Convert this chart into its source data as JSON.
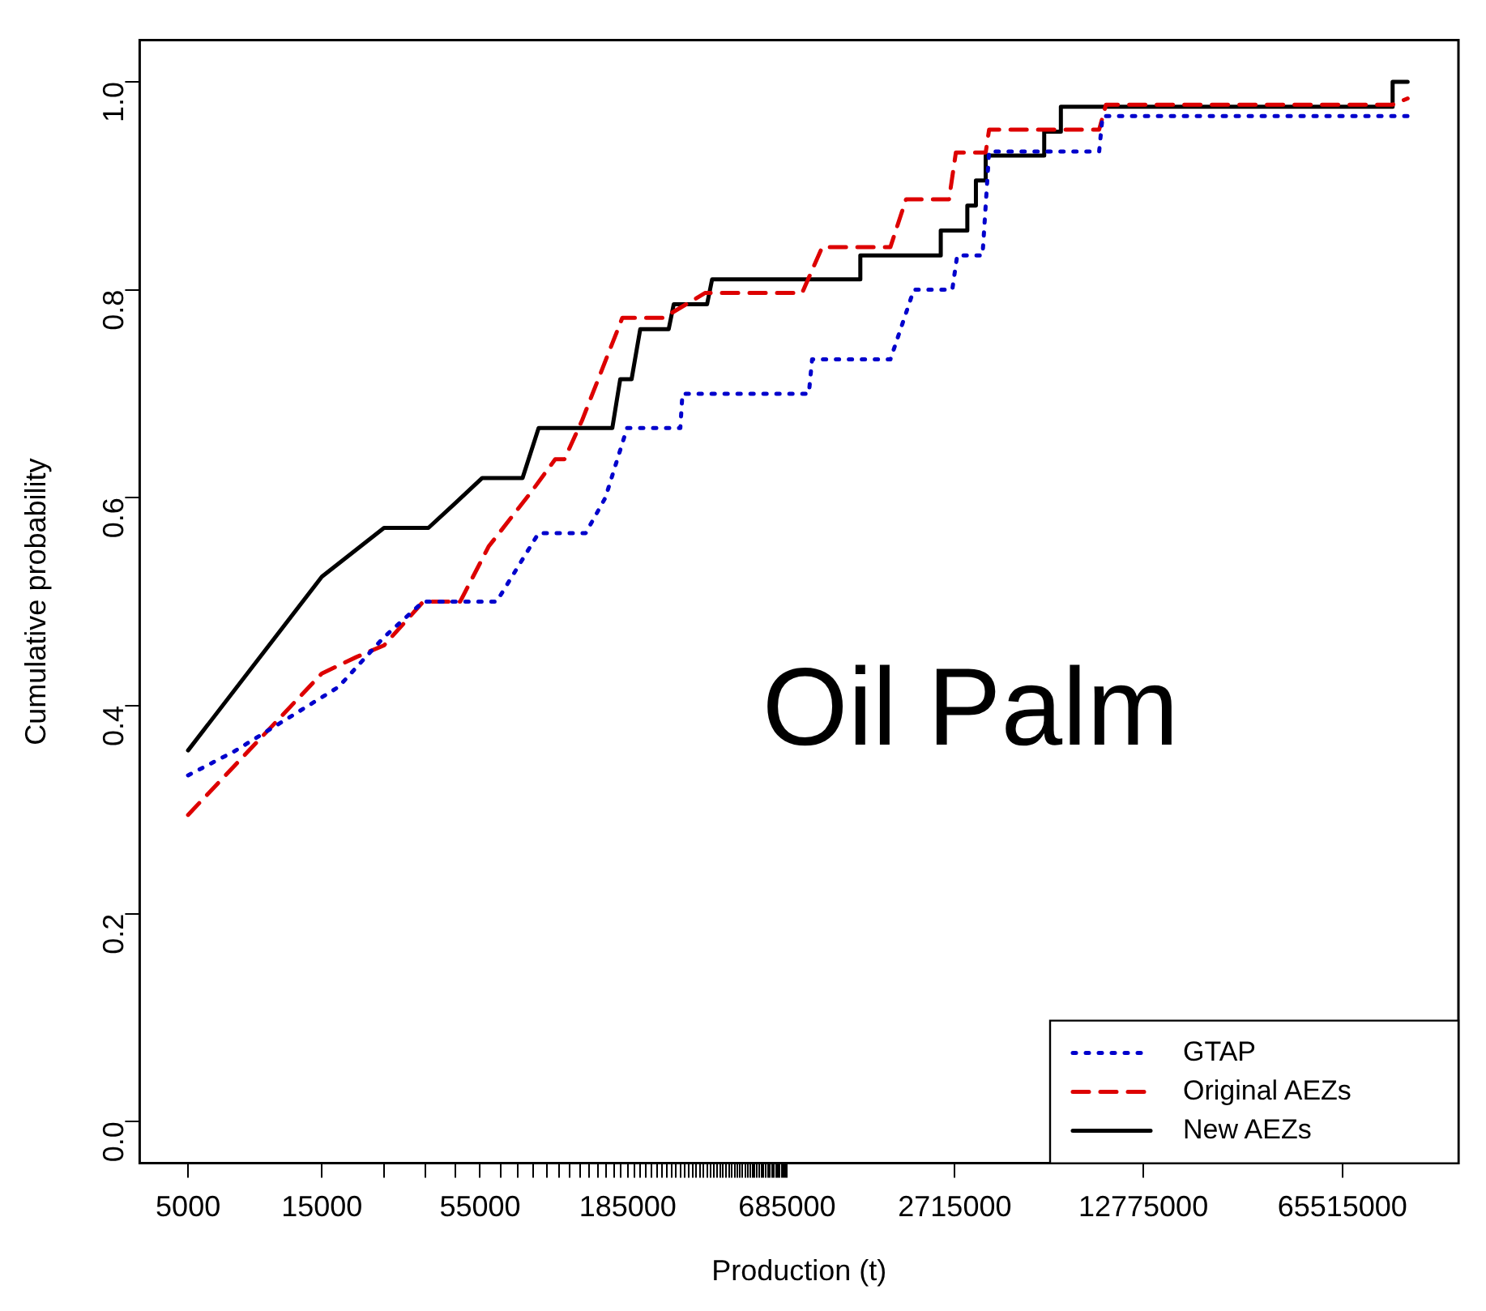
{
  "chart_data": {
    "type": "line",
    "xlabel": "Production (t)",
    "ylabel": "Cumulative probability",
    "annotations": [
      "Oil Palm"
    ],
    "log": "x",
    "grid": false,
    "legend": "bottom right",
    "marker": "none",
    "xlim": [
      3360,
      170000000
    ],
    "ylim": [
      -0.04,
      1.04
    ],
    "xticks": [
      5000,
      15000,
      {
        "value": 25000,
        "label": null
      },
      {
        "value": 35000,
        "label": null
      },
      {
        "value": 45000,
        "label": null
      },
      55000,
      {
        "value": 65000,
        "label": null
      },
      {
        "value": 75000,
        "label": null
      },
      {
        "value": 85000,
        "label": null
      },
      {
        "value": 95000,
        "label": null
      },
      {
        "value": 105000,
        "label": null
      },
      {
        "value": 115000,
        "label": null
      },
      {
        "value": 125000,
        "label": null
      },
      {
        "value": 135000,
        "label": null
      },
      {
        "value": 145000,
        "label": null
      },
      {
        "value": 155000,
        "label": null
      },
      {
        "value": 165000,
        "label": null
      },
      {
        "value": 175000,
        "label": null
      },
      185000,
      {
        "value": 195000,
        "label": null
      },
      {
        "value": 205000,
        "label": null
      },
      {
        "value": 215000,
        "label": null
      },
      {
        "value": 225000,
        "label": null
      },
      {
        "value": 235000,
        "label": null
      },
      {
        "value": 245000,
        "label": null
      },
      {
        "value": 255000,
        "label": null
      },
      {
        "value": 265000,
        "label": null
      },
      {
        "value": 275000,
        "label": null
      },
      {
        "value": 285000,
        "label": null
      },
      {
        "value": 295000,
        "label": null
      },
      {
        "value": 305000,
        "label": null
      },
      {
        "value": 315000,
        "label": null
      },
      {
        "value": 325000,
        "label": null
      },
      {
        "value": 335000,
        "label": null
      },
      {
        "value": 345000,
        "label": null
      },
      {
        "value": 355000,
        "label": null
      },
      {
        "value": 365000,
        "label": null
      },
      {
        "value": 375000,
        "label": null
      },
      {
        "value": 385000,
        "label": null
      },
      {
        "value": 395000,
        "label": null
      },
      {
        "value": 405000,
        "label": null
      },
      {
        "value": 415000,
        "label": null
      },
      {
        "value": 425000,
        "label": null
      },
      {
        "value": 435000,
        "label": null
      },
      {
        "value": 445000,
        "label": null
      },
      {
        "value": 455000,
        "label": null
      },
      {
        "value": 465000,
        "label": null
      },
      {
        "value": 475000,
        "label": null
      },
      {
        "value": 485000,
        "label": null
      },
      {
        "value": 495000,
        "label": null
      },
      {
        "value": 505000,
        "label": null
      },
      {
        "value": 515000,
        "label": null
      },
      {
        "value": 525000,
        "label": null
      },
      {
        "value": 535000,
        "label": null
      },
      {
        "value": 545000,
        "label": null
      },
      {
        "value": 555000,
        "label": null
      },
      {
        "value": 565000,
        "label": null
      },
      {
        "value": 575000,
        "label": null
      },
      {
        "value": 585000,
        "label": null
      },
      {
        "value": 595000,
        "label": null
      },
      {
        "value": 605000,
        "label": null
      },
      {
        "value": 615000,
        "label": null
      },
      {
        "value": 625000,
        "label": null
      },
      {
        "value": 635000,
        "label": null
      },
      {
        "value": 645000,
        "label": null
      },
      {
        "value": 655000,
        "label": null
      },
      {
        "value": 665000,
        "label": null
      },
      {
        "value": 675000,
        "label": null
      },
      685000,
      2715000,
      12775000,
      65515000
    ],
    "yticks": [
      {
        "value": 0,
        "label": "0.0"
      },
      {
        "value": 0.2,
        "label": "0.2"
      },
      {
        "value": 0.4,
        "label": "0.4"
      },
      {
        "value": 0.6,
        "label": "0.6"
      },
      {
        "value": 0.8,
        "label": "0.8"
      },
      {
        "value": 1,
        "label": "1.0"
      }
    ],
    "series": [
      {
        "name": "GTAP",
        "color": "#0000cc",
        "line_style": "dotted",
        "x": [
          5000,
          7300,
          9900,
          17200,
          25000,
          34500,
          63000,
          89000,
          131000,
          154000,
          184000,
          285000,
          290000,
          819000,
          841000,
          1600000,
          1940000,
          2660000,
          2770000,
          3410000,
          3600000,
          8890000,
          9140000,
          112000000
        ],
        "values": [
          0.333,
          0.356,
          0.378,
          0.418,
          0.466,
          0.5,
          0.5,
          0.566,
          0.566,
          0.6,
          0.667,
          0.667,
          0.7,
          0.7,
          0.733,
          0.733,
          0.8,
          0.8,
          0.833,
          0.833,
          0.933,
          0.933,
          0.967,
          0.967
        ]
      },
      {
        "name": "Original AEZs",
        "color": "#dd0000",
        "line_style": "dashed",
        "x": [
          5000,
          15000,
          20000,
          25000,
          34500,
          46700,
          59000,
          84000,
          102000,
          110000,
          127000,
          177000,
          248000,
          350000,
          775000,
          914000,
          1600000,
          1820000,
          2590000,
          2740000,
          3500000,
          3600000,
          8890000,
          9400000,
          99000000,
          112000000
        ],
        "values": [
          0.295,
          0.431,
          0.447,
          0.458,
          0.5,
          0.5,
          0.553,
          0.606,
          0.637,
          0.637,
          0.674,
          0.773,
          0.773,
          0.797,
          0.797,
          0.841,
          0.841,
          0.887,
          0.887,
          0.932,
          0.932,
          0.954,
          0.954,
          0.978,
          0.978,
          0.984
        ]
      },
      {
        "name": "New AEZs",
        "color": "#000000",
        "line_style": "solid",
        "x": [
          5000,
          15000,
          25000,
          36000,
          45000,
          56000,
          78000,
          89000,
          163000,
          174000,
          191000,
          205000,
          259000,
          270000,
          355000,
          370000,
          1250000,
          1250000,
          2420000,
          2420000,
          3010000,
          3010000,
          3230000,
          3230000,
          3500000,
          3500000,
          5660000,
          5660000,
          6490000,
          6490000,
          99000000,
          99000000,
          112000000
        ],
        "values": [
          0.357,
          0.524,
          0.571,
          0.571,
          0.595,
          0.619,
          0.619,
          0.667,
          0.667,
          0.714,
          0.714,
          0.762,
          0.762,
          0.786,
          0.786,
          0.81,
          0.81,
          0.833,
          0.833,
          0.857,
          0.857,
          0.881,
          0.881,
          0.905,
          0.905,
          0.929,
          0.929,
          0.952,
          0.952,
          0.976,
          0.976,
          1.0,
          1.0
        ]
      }
    ]
  }
}
